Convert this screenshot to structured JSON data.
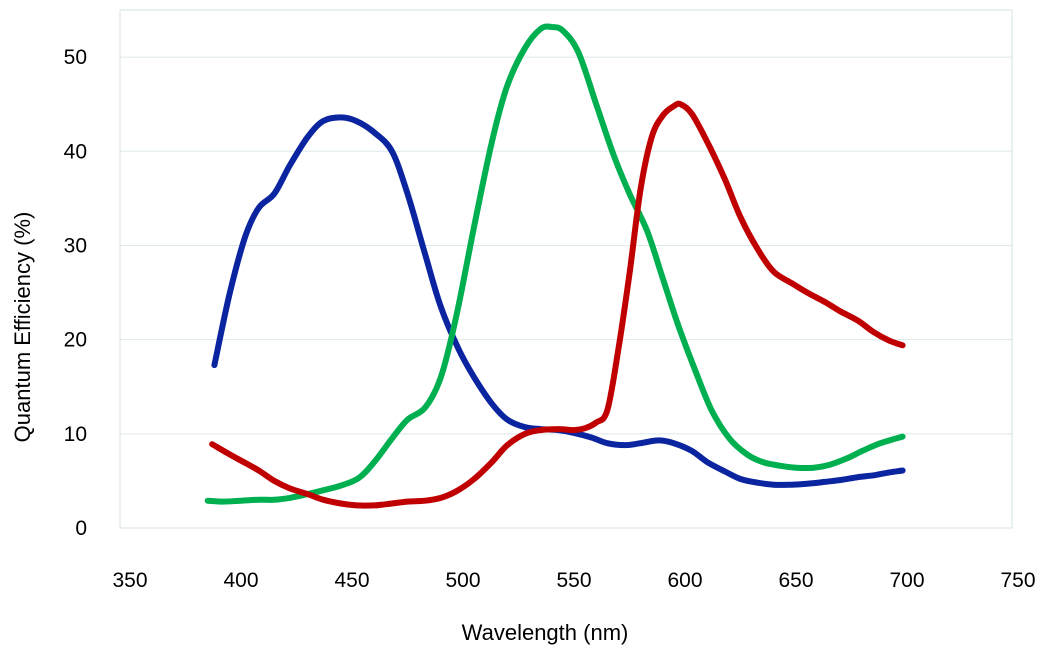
{
  "chart_data": {
    "type": "line",
    "title": "",
    "xlabel": "Wavelength (nm)",
    "ylabel": "Quantum Efficiency (%)",
    "xlim": [
      350,
      750
    ],
    "ylim": [
      0,
      55
    ],
    "xticks": [
      350,
      400,
      450,
      500,
      550,
      600,
      650,
      700,
      750
    ],
    "yticks": [
      0,
      10,
      20,
      30,
      40,
      50
    ],
    "grid": {
      "horizontal": true,
      "vertical": false
    },
    "legend": "none",
    "colors": {
      "grid": "#dde8e8",
      "frame": "#d6e3e3"
    },
    "series": [
      {
        "color": "#0b24a0",
        "points": [
          [
            388,
            17.3
          ],
          [
            395,
            25.0
          ],
          [
            402,
            31.0
          ],
          [
            408,
            34.0
          ],
          [
            415,
            35.5
          ],
          [
            422,
            38.5
          ],
          [
            430,
            41.5
          ],
          [
            437,
            43.2
          ],
          [
            445,
            43.6
          ],
          [
            452,
            43.2
          ],
          [
            460,
            42.0
          ],
          [
            468,
            40.0
          ],
          [
            475,
            35.5
          ],
          [
            483,
            29.0
          ],
          [
            490,
            23.5
          ],
          [
            498,
            19.0
          ],
          [
            505,
            16.0
          ],
          [
            513,
            13.2
          ],
          [
            520,
            11.5
          ],
          [
            528,
            10.7
          ],
          [
            535,
            10.5
          ],
          [
            543,
            10.4
          ],
          [
            550,
            10.1
          ],
          [
            558,
            9.6
          ],
          [
            565,
            9.0
          ],
          [
            573,
            8.8
          ],
          [
            580,
            9.0
          ],
          [
            588,
            9.3
          ],
          [
            595,
            9.0
          ],
          [
            603,
            8.2
          ],
          [
            610,
            7.0
          ],
          [
            618,
            6.0
          ],
          [
            625,
            5.2
          ],
          [
            633,
            4.8
          ],
          [
            640,
            4.6
          ],
          [
            648,
            4.6
          ],
          [
            655,
            4.7
          ],
          [
            663,
            4.9
          ],
          [
            670,
            5.1
          ],
          [
            678,
            5.4
          ],
          [
            685,
            5.6
          ],
          [
            692,
            5.9
          ],
          [
            698,
            6.1
          ]
        ]
      },
      {
        "color": "#00b050",
        "points": [
          [
            385,
            2.9
          ],
          [
            392,
            2.8
          ],
          [
            400,
            2.9
          ],
          [
            408,
            3.0
          ],
          [
            415,
            3.0
          ],
          [
            422,
            3.2
          ],
          [
            430,
            3.6
          ],
          [
            437,
            4.0
          ],
          [
            445,
            4.5
          ],
          [
            453,
            5.3
          ],
          [
            460,
            7.0
          ],
          [
            468,
            9.5
          ],
          [
            475,
            11.5
          ],
          [
            483,
            12.8
          ],
          [
            490,
            16.0
          ],
          [
            497,
            22.5
          ],
          [
            505,
            32.0
          ],
          [
            513,
            41.0
          ],
          [
            520,
            47.0
          ],
          [
            528,
            51.0
          ],
          [
            535,
            53.0
          ],
          [
            540,
            53.2
          ],
          [
            545,
            52.8
          ],
          [
            552,
            50.5
          ],
          [
            560,
            45.0
          ],
          [
            568,
            39.5
          ],
          [
            575,
            35.5
          ],
          [
            583,
            31.5
          ],
          [
            590,
            26.5
          ],
          [
            597,
            21.5
          ],
          [
            605,
            16.5
          ],
          [
            612,
            12.5
          ],
          [
            620,
            9.5
          ],
          [
            628,
            7.8
          ],
          [
            635,
            7.0
          ],
          [
            643,
            6.6
          ],
          [
            650,
            6.4
          ],
          [
            658,
            6.4
          ],
          [
            665,
            6.7
          ],
          [
            673,
            7.4
          ],
          [
            680,
            8.2
          ],
          [
            688,
            9.0
          ],
          [
            698,
            9.7
          ]
        ]
      },
      {
        "color": "#c00000",
        "points": [
          [
            387,
            8.9
          ],
          [
            395,
            7.8
          ],
          [
            402,
            6.9
          ],
          [
            408,
            6.1
          ],
          [
            415,
            5.0
          ],
          [
            422,
            4.2
          ],
          [
            430,
            3.6
          ],
          [
            437,
            3.0
          ],
          [
            445,
            2.6
          ],
          [
            452,
            2.4
          ],
          [
            460,
            2.4
          ],
          [
            468,
            2.6
          ],
          [
            475,
            2.8
          ],
          [
            483,
            2.9
          ],
          [
            490,
            3.2
          ],
          [
            497,
            3.9
          ],
          [
            505,
            5.2
          ],
          [
            513,
            7.0
          ],
          [
            520,
            8.8
          ],
          [
            528,
            10.0
          ],
          [
            535,
            10.4
          ],
          [
            543,
            10.5
          ],
          [
            550,
            10.4
          ],
          [
            555,
            10.6
          ],
          [
            560,
            11.2
          ],
          [
            565,
            12.5
          ],
          [
            570,
            19.0
          ],
          [
            575,
            27.0
          ],
          [
            580,
            36.0
          ],
          [
            585,
            41.5
          ],
          [
            590,
            43.8
          ],
          [
            595,
            44.8
          ],
          [
            598,
            45.0
          ],
          [
            603,
            44.0
          ],
          [
            610,
            41.0
          ],
          [
            618,
            37.0
          ],
          [
            625,
            33.0
          ],
          [
            633,
            29.5
          ],
          [
            640,
            27.2
          ],
          [
            648,
            26.0
          ],
          [
            655,
            25.0
          ],
          [
            663,
            24.0
          ],
          [
            670,
            23.0
          ],
          [
            678,
            22.0
          ],
          [
            685,
            20.8
          ],
          [
            692,
            19.9
          ],
          [
            698,
            19.4
          ]
        ]
      }
    ]
  }
}
